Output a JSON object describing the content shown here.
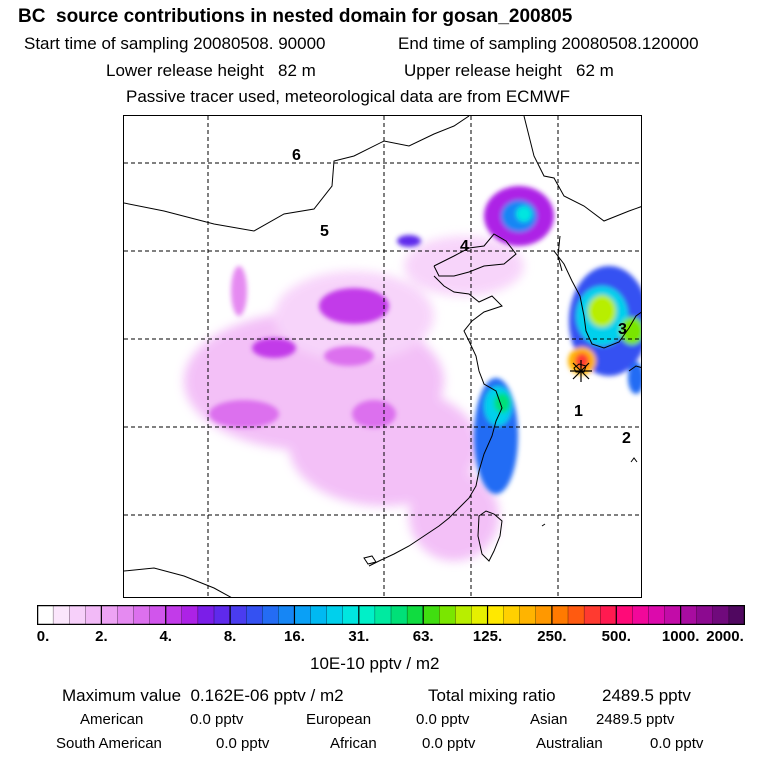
{
  "header": {
    "title": "BC  source contributions in nested domain for gosan_200805",
    "start_label": "Start time of sampling 20080508. 90000",
    "end_label": "End time of sampling 20080508.120000",
    "lower_label": "Lower release height   82 m",
    "upper_label": "Upper release height   62 m",
    "tracer_label": "Passive tracer used, meteorological data are from ECMWF"
  },
  "map": {
    "region_labels": [
      "1",
      "2",
      "3",
      "4",
      "5",
      "6"
    ],
    "receptor_color": "#000000",
    "grid": true
  },
  "colorbar": {
    "labels": [
      "0.",
      "2.",
      "4.",
      "8.",
      "16.",
      "31.",
      "63.",
      "125.",
      "250.",
      "500.",
      "1000.",
      "2000."
    ],
    "colors": [
      "#ffffff",
      "#fbe6fc",
      "#f7d0fa",
      "#f2baf7",
      "#eda3f4",
      "#e58af1",
      "#dc70ee",
      "#d155ec",
      "#c23be9",
      "#ad22e6",
      "#7b1ee8",
      "#5f2aec",
      "#4a3cef",
      "#3451f2",
      "#246cf4",
      "#1686f5",
      "#0aa0f6",
      "#00b9f2",
      "#00d0ec",
      "#00e6e0",
      "#00f0c8",
      "#00eaa0",
      "#00e078",
      "#10dc40",
      "#40de10",
      "#7ae600",
      "#b8ee00",
      "#e6f000",
      "#ffe800",
      "#ffd000",
      "#ffb400",
      "#ff9800",
      "#ff7a00",
      "#ff5a10",
      "#ff3a30",
      "#ff1a50",
      "#ff0a78",
      "#f2089a",
      "#dc0aac",
      "#c20ca8",
      "#a80ca0",
      "#8c0a90",
      "#700a7c",
      "#500860"
    ],
    "units": "10E-10 pptv / m2"
  },
  "stats": {
    "max_label": "Maximum value  0.162E-06 pptv / m2",
    "total_label": "Total mixing ratio",
    "total_value": "2489.5 pptv",
    "american_label": "American",
    "american_value": "0.0 pptv",
    "european_label": "European",
    "european_value": "0.0 pptv",
    "asian_label": "Asian",
    "asian_value": "2489.5 pptv",
    "south_american_label": "South American",
    "south_american_value": "0.0 pptv",
    "african_label": "African",
    "african_value": "0.0 pptv",
    "australian_label": "Australian",
    "australian_value": "0.0 pptv"
  }
}
